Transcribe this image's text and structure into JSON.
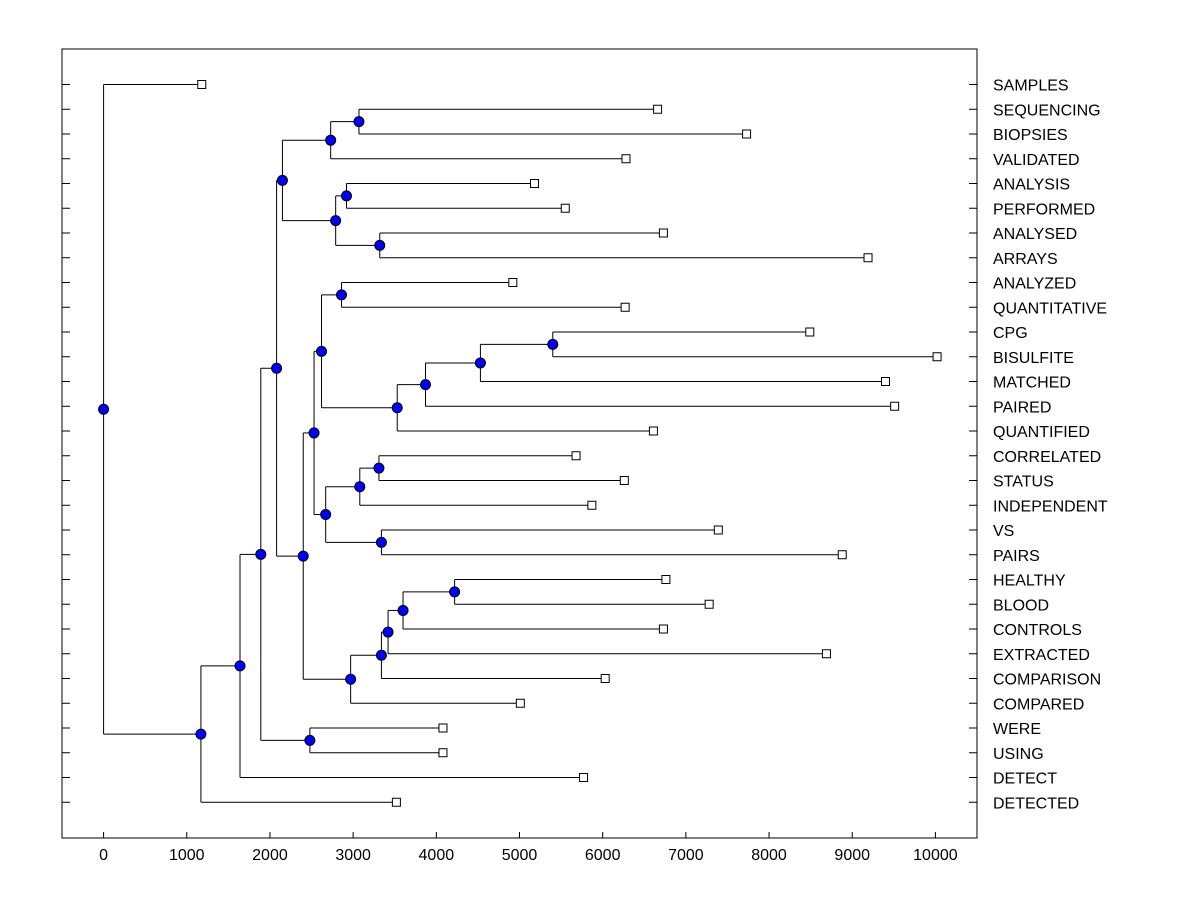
{
  "chart_data": {
    "type": "dendrogram",
    "orientation": "horizontal",
    "xlim": [
      -500,
      10500
    ],
    "xticks": [
      0,
      1000,
      2000,
      3000,
      4000,
      5000,
      6000,
      7000,
      8000,
      9000,
      10000
    ],
    "xtick_labels": [
      "0",
      "1000",
      "2000",
      "3000",
      "4000",
      "5000",
      "6000",
      "7000",
      "8000",
      "9000",
      "10000"
    ],
    "grid": false,
    "leaves": [
      {
        "name": "SAMPLES",
        "value": 1180
      },
      {
        "name": "SEQUENCING",
        "value": 6660
      },
      {
        "name": "BIOPSIES",
        "value": 7730
      },
      {
        "name": "VALIDATED",
        "value": 6280
      },
      {
        "name": "ANALYSIS",
        "value": 5180
      },
      {
        "name": "PERFORMED",
        "value": 5550
      },
      {
        "name": "ANALYSED",
        "value": 6730
      },
      {
        "name": "ARRAYS",
        "value": 9190
      },
      {
        "name": "ANALYZED",
        "value": 4920
      },
      {
        "name": "QUANTITATIVE",
        "value": 6270
      },
      {
        "name": "CPG",
        "value": 8490
      },
      {
        "name": "BISULFITE",
        "value": 10020
      },
      {
        "name": "MATCHED",
        "value": 9400
      },
      {
        "name": "PAIRED",
        "value": 9510
      },
      {
        "name": "QUANTIFIED",
        "value": 6610
      },
      {
        "name": "CORRELATED",
        "value": 5680
      },
      {
        "name": "STATUS",
        "value": 6260
      },
      {
        "name": "INDEPENDENT",
        "value": 5870
      },
      {
        "name": "VS",
        "value": 7390
      },
      {
        "name": "PAIRS",
        "value": 8880
      },
      {
        "name": "HEALTHY",
        "value": 6760
      },
      {
        "name": "BLOOD",
        "value": 7280
      },
      {
        "name": "CONTROLS",
        "value": 6730
      },
      {
        "name": "EXTRACTED",
        "value": 8690
      },
      {
        "name": "COMPARISON",
        "value": 6030
      },
      {
        "name": "COMPARED",
        "value": 5010
      },
      {
        "name": "WERE",
        "value": 4080
      },
      {
        "name": "USING",
        "value": 4080
      },
      {
        "name": "DETECT",
        "value": 5770
      },
      {
        "name": "DETECTED",
        "value": 3520
      }
    ],
    "merges": [
      {
        "a": "L1",
        "b": "L2",
        "x": 3070
      },
      {
        "a": "N0",
        "b": "L3",
        "x": 2730
      },
      {
        "a": "L4",
        "b": "L5",
        "x": 2920
      },
      {
        "a": "L6",
        "b": "L7",
        "x": 3320
      },
      {
        "a": "N2",
        "b": "N3",
        "x": 2790
      },
      {
        "a": "N1",
        "b": "N4",
        "x": 2150
      },
      {
        "a": "L8",
        "b": "L9",
        "x": 2860
      },
      {
        "a": "L10",
        "b": "L11",
        "x": 5400
      },
      {
        "a": "N7",
        "b": "L12",
        "x": 4530
      },
      {
        "a": "N8",
        "b": "L13",
        "x": 3870
      },
      {
        "a": "N9",
        "b": "L14",
        "x": 3530
      },
      {
        "a": "N6",
        "b": "N10",
        "x": 2620
      },
      {
        "a": "L15",
        "b": "L16",
        "x": 3310
      },
      {
        "a": "N12",
        "b": "L17",
        "x": 3080
      },
      {
        "a": "L18",
        "b": "L19",
        "x": 3340
      },
      {
        "a": "N13",
        "b": "N14",
        "x": 2670
      },
      {
        "a": "N11",
        "b": "N15",
        "x": 2530
      },
      {
        "a": "L20",
        "b": "L21",
        "x": 4220
      },
      {
        "a": "N17",
        "b": "L22",
        "x": 3600
      },
      {
        "a": "N18",
        "b": "L23",
        "x": 3420
      },
      {
        "a": "N19",
        "b": "L24",
        "x": 3340
      },
      {
        "a": "N20",
        "b": "L25",
        "x": 2970
      },
      {
        "a": "N16",
        "b": "N21",
        "x": 2400
      },
      {
        "a": "N5",
        "b": "N22",
        "x": 2080
      },
      {
        "a": "L26",
        "b": "L27",
        "x": 2480
      },
      {
        "a": "N23",
        "b": "N24",
        "x": 1890
      },
      {
        "a": "N25",
        "b": "L28",
        "x": 1640
      },
      {
        "a": "N26",
        "b": "L29",
        "x": 1170
      },
      {
        "a": "L0",
        "b": "N27",
        "x": 0
      }
    ],
    "title": "",
    "xlabel": "",
    "ylabel": "",
    "colors": {
      "node": "#0000ff",
      "line": "#000000",
      "leaf_fill": "#ffffff"
    }
  }
}
